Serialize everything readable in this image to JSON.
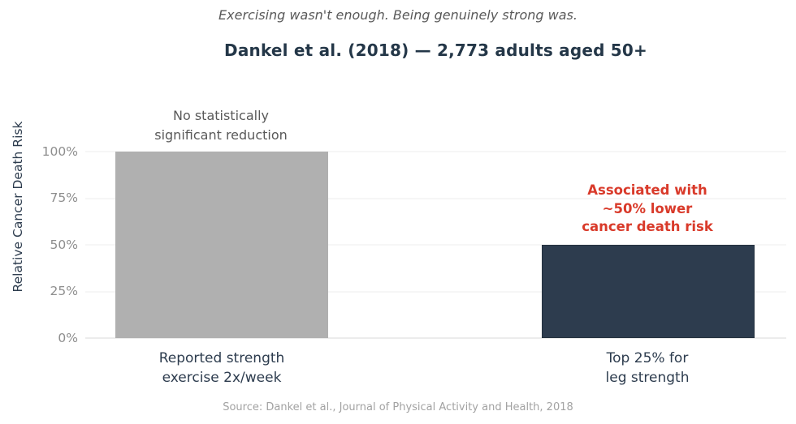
{
  "source": "Source: Dankel et al., Journal of Physical Activity and Health, 2018",
  "colors": {
    "title_text": "#243748",
    "axis_text": "#2d3c4e",
    "muted_text": "#595959",
    "tick_text": "#8e8e8e",
    "source_text": "#a2a2a2",
    "highlight_red": "#d93a2a",
    "bar_gray": "#b0b0b0",
    "bar_navy": "#2d3c4e",
    "gridline": "#ececec",
    "baseline": "#d8d8d8"
  },
  "chart_data": {
    "type": "bar",
    "subtitle": "Exercising wasn't enough. Being genuinely strong was.",
    "title": "Dankel et al. (2018) — 2,773 adults aged 50+",
    "ylabel": "Relative Cancer Death Risk",
    "xlabel": "",
    "categories": [
      "Reported strength\nexercise 2x/week",
      "Top 25% for\nleg strength"
    ],
    "values": [
      100,
      50
    ],
    "bar_colors": [
      "#b0b0b0",
      "#2d3c4e"
    ],
    "ylim": [
      0,
      100
    ],
    "yticks": [
      0,
      25,
      50,
      75,
      100
    ],
    "ytick_labels": [
      "0%",
      "25%",
      "50%",
      "75%",
      "100%"
    ],
    "grid": "horizontal",
    "legend": "none",
    "annotations": [
      {
        "text": "No statistically\nsignificant reduction",
        "target": "bar-exercise"
      },
      {
        "text": "Associated with\n~50% lower\ncancer death risk",
        "target": "bar-strength"
      }
    ]
  }
}
